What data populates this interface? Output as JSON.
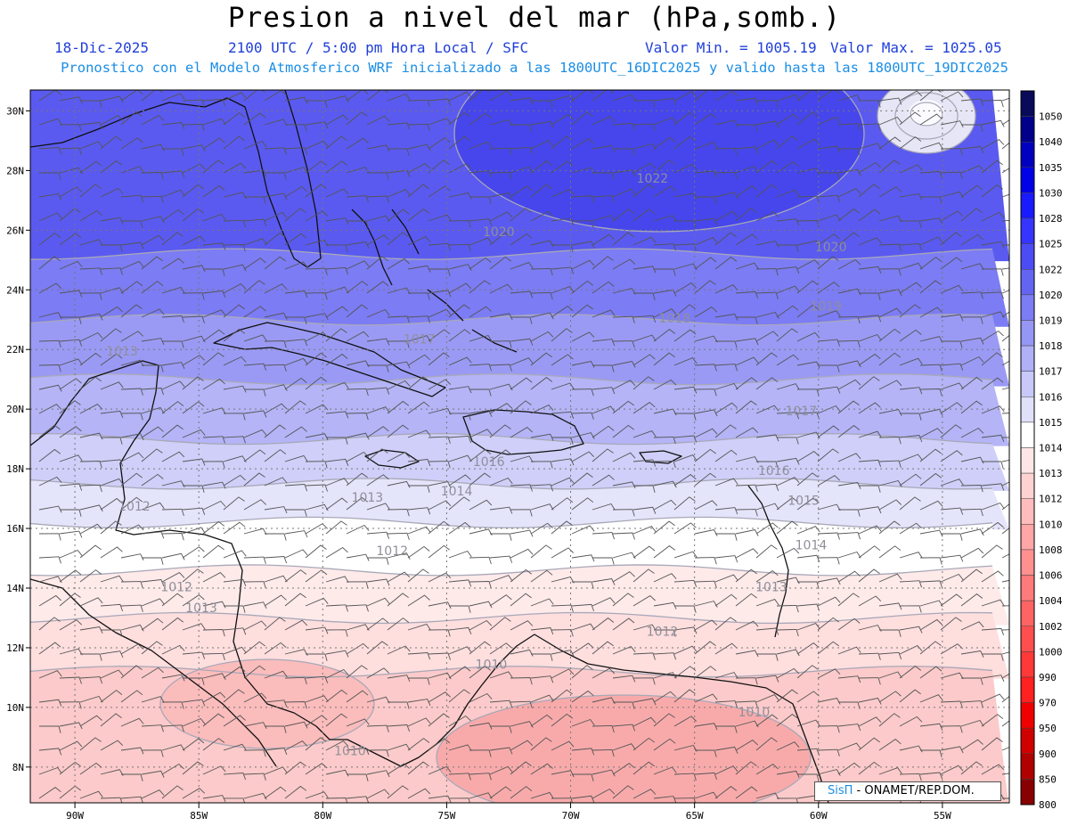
{
  "header": {
    "title": "Presion a nivel del mar (hPa,somb.)",
    "date": "18-Dic-2025",
    "time": "2100 UTC / 5:00 pm Hora Local / SFC",
    "min_label": "Valor Min. = 1005.19",
    "max_label": "Valor Max. = 1025.05",
    "model_info": "Pronostico con el Modelo Atmosferico WRF inicializado a las 1800UTC_16DIC2025 y valido hasta las  1800UTC_19DIC2025"
  },
  "credit": {
    "brand": "SisΠ",
    "text": " - ONAMET/REP.DOM."
  },
  "axes": {
    "lon_labels": [
      "90W",
      "85W",
      "80W",
      "75W",
      "70W",
      "65W",
      "60W",
      "55W"
    ],
    "lon_values": [
      -90,
      -85,
      -80,
      -75,
      -70,
      -65,
      -60,
      -55
    ],
    "lat_labels": [
      "30N",
      "28N",
      "26N",
      "24N",
      "22N",
      "20N",
      "18N",
      "16N",
      "14N",
      "12N",
      "10N",
      "8N"
    ],
    "lat_values": [
      30,
      28,
      26,
      24,
      22,
      20,
      18,
      16,
      14,
      12,
      10,
      8
    ],
    "lon_range": [
      -91.8,
      -52.3
    ],
    "lat_range": [
      6.8,
      30.7
    ]
  },
  "colorbar": {
    "levels": [
      "1050",
      "1040",
      "1035",
      "1030",
      "1028",
      "1025",
      "1022",
      "1020",
      "1019",
      "1018",
      "1017",
      "1016",
      "1015",
      "1014",
      "1013",
      "1012",
      "1010",
      "1008",
      "1006",
      "1004",
      "1002",
      "1000",
      "990",
      "970",
      "950",
      "900",
      "850",
      "800"
    ],
    "colors": [
      "#0a0a5a",
      "#00008a",
      "#0000c0",
      "#0000e8",
      "#1a1aff",
      "#3535ff",
      "#4c4cf5",
      "#6464f2",
      "#7c7cf4",
      "#9696f5",
      "#b0b0f7",
      "#c8c8f9",
      "#e0e0fb",
      "#ffffff",
      "#ffe6e6",
      "#ffd2d2",
      "#ffbcbc",
      "#ffa6a6",
      "#ff9090",
      "#ff7a7a",
      "#ff6464",
      "#ff4e4e",
      "#ff3838",
      "#ff2020",
      "#f00000",
      "#d00000",
      "#b00000",
      "#880000"
    ]
  },
  "pressure_bands": [
    {
      "lat_max": 30.7,
      "lat_min": 25.2,
      "color": "#5a5af0",
      "note": "1022"
    },
    {
      "lat_max": 25.2,
      "lat_min": 23.0,
      "color": "#7c7cf4",
      "note": "1019"
    },
    {
      "lat_max": 23.0,
      "lat_min": 21.0,
      "color": "#9a9af5",
      "note": "1018"
    },
    {
      "lat_max": 21.0,
      "lat_min": 19.0,
      "color": "#b4b4f7",
      "note": "1017"
    },
    {
      "lat_max": 19.0,
      "lat_min": 17.5,
      "color": "#cfcff9",
      "note": "1016"
    },
    {
      "lat_max": 17.5,
      "lat_min": 16.2,
      "color": "#e4e4fb",
      "note": "1015"
    },
    {
      "lat_max": 16.2,
      "lat_min": 14.6,
      "color": "#ffffff",
      "note": "1014"
    },
    {
      "lat_max": 14.6,
      "lat_min": 13.0,
      "color": "#ffeaea",
      "note": "1013"
    },
    {
      "lat_max": 13.0,
      "lat_min": 11.2,
      "color": "#ffdede",
      "note": "1012"
    },
    {
      "lat_max": 11.2,
      "lat_min": 6.8,
      "color": "#fccaca",
      "note": "1010"
    }
  ],
  "contour_labels": [
    {
      "text": "1022",
      "lon": -66.7,
      "lat": 27.6
    },
    {
      "text": "1020",
      "lon": -72.9,
      "lat": 25.8
    },
    {
      "text": "1020",
      "lon": -59.5,
      "lat": 25.3
    },
    {
      "text": "1019",
      "lon": -59.7,
      "lat": 23.3
    },
    {
      "text": "1018",
      "lon": -65.8,
      "lat": 22.9
    },
    {
      "text": "1017",
      "lon": -76.1,
      "lat": 22.2
    },
    {
      "text": "1017",
      "lon": -60.7,
      "lat": 19.8
    },
    {
      "text": "1016",
      "lon": -73.3,
      "lat": 18.1
    },
    {
      "text": "1016",
      "lon": -61.8,
      "lat": 17.8
    },
    {
      "text": "1015",
      "lon": -60.6,
      "lat": 16.8
    },
    {
      "text": "1014",
      "lon": -74.6,
      "lat": 17.1
    },
    {
      "text": "1014",
      "lon": -60.3,
      "lat": 15.3
    },
    {
      "text": "1013",
      "lon": -88.1,
      "lat": 21.8
    },
    {
      "text": "1013",
      "lon": -78.2,
      "lat": 16.9
    },
    {
      "text": "1013",
      "lon": -84.9,
      "lat": 13.2
    },
    {
      "text": "1013",
      "lon": -61.9,
      "lat": 13.9
    },
    {
      "text": "1012",
      "lon": -87.6,
      "lat": 16.6
    },
    {
      "text": "1012",
      "lon": -77.2,
      "lat": 15.1
    },
    {
      "text": "1012",
      "lon": -85.9,
      "lat": 13.9
    },
    {
      "text": "1012",
      "lon": -66.3,
      "lat": 12.4
    },
    {
      "text": "1010",
      "lon": -73.2,
      "lat": 11.3
    },
    {
      "text": "1010",
      "lon": -78.9,
      "lat": 8.4
    },
    {
      "text": "1010",
      "lon": -62.6,
      "lat": 9.7
    }
  ],
  "wind": {
    "dir_deg": 70,
    "speed_kt": 15
  }
}
